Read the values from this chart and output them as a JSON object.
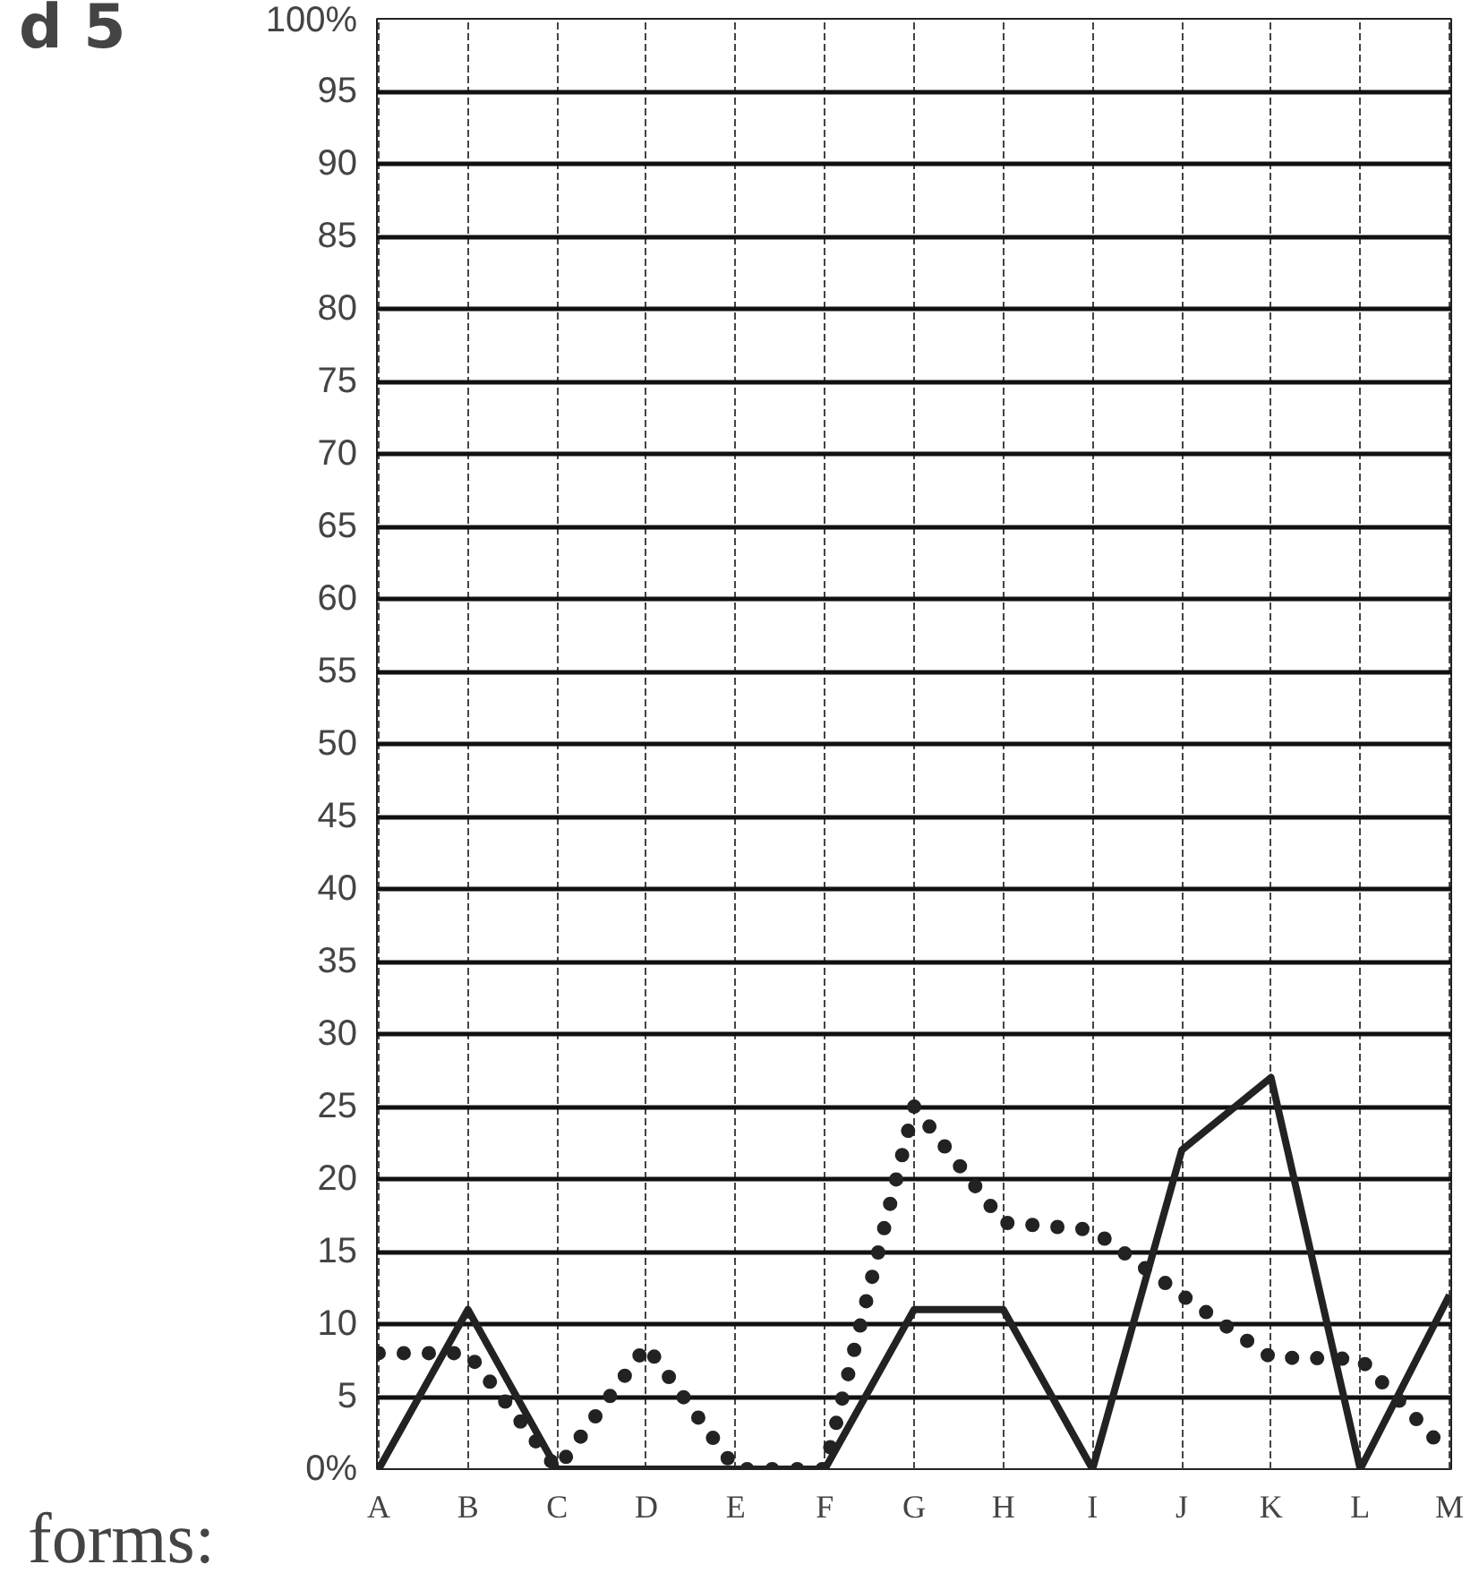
{
  "chart_data": {
    "type": "line",
    "title": "d 5",
    "xlabel": "forms:",
    "categories": [
      "A",
      "B",
      "C",
      "D",
      "E",
      "F",
      "G",
      "H",
      "I",
      "J",
      "K",
      "L",
      "M"
    ],
    "series": [
      {
        "color": "#222222",
        "line_style": "solid",
        "values": [
          0,
          11,
          0,
          0,
          0,
          0,
          11,
          11,
          0,
          22,
          27,
          0,
          12
        ]
      },
      {
        "color": "#222222",
        "line_style": "dotted",
        "values": [
          8,
          8,
          0,
          8.5,
          0,
          0,
          25,
          17,
          16.5,
          12,
          7.7,
          7.6,
          1
        ]
      }
    ],
    "ylim": [
      0,
      100
    ],
    "yticks": [
      {
        "value": 0,
        "label": "0%"
      },
      5,
      10,
      15,
      20,
      25,
      30,
      35,
      40,
      45,
      50,
      55,
      60,
      65,
      70,
      75,
      80,
      85,
      90,
      95,
      {
        "value": 100,
        "label": "100%"
      }
    ],
    "grid": true,
    "marker": "none"
  }
}
